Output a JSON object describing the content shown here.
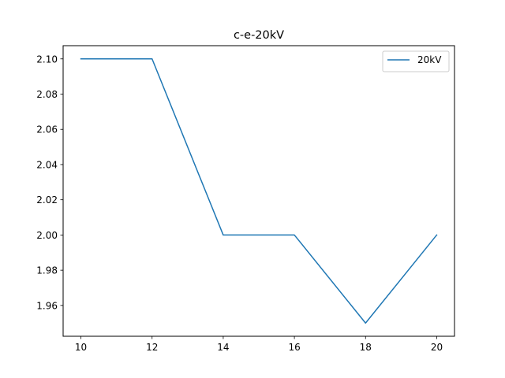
{
  "chart_data": {
    "type": "line",
    "title": "c-e-20kV",
    "xlabel": "",
    "ylabel": "",
    "x": [
      10,
      12,
      14,
      16,
      18,
      20
    ],
    "series": [
      {
        "name": "20kV",
        "values": [
          2.1,
          2.1,
          2.0,
          2.0,
          1.95,
          2.0
        ],
        "color": "#1f77b4"
      }
    ],
    "xlim": [
      9.5,
      20.5
    ],
    "ylim": [
      1.9425,
      2.1075
    ],
    "xticks": [
      10,
      12,
      14,
      16,
      18,
      20
    ],
    "xtick_labels": [
      "10",
      "12",
      "14",
      "16",
      "18",
      "20"
    ],
    "yticks": [
      1.96,
      1.98,
      2.0,
      2.02,
      2.04,
      2.06,
      2.08,
      2.1
    ],
    "ytick_labels": [
      "1.96",
      "1.98",
      "2.00",
      "2.02",
      "2.04",
      "2.06",
      "2.08",
      "2.10"
    ],
    "grid": false,
    "legend_position": "top-right"
  }
}
